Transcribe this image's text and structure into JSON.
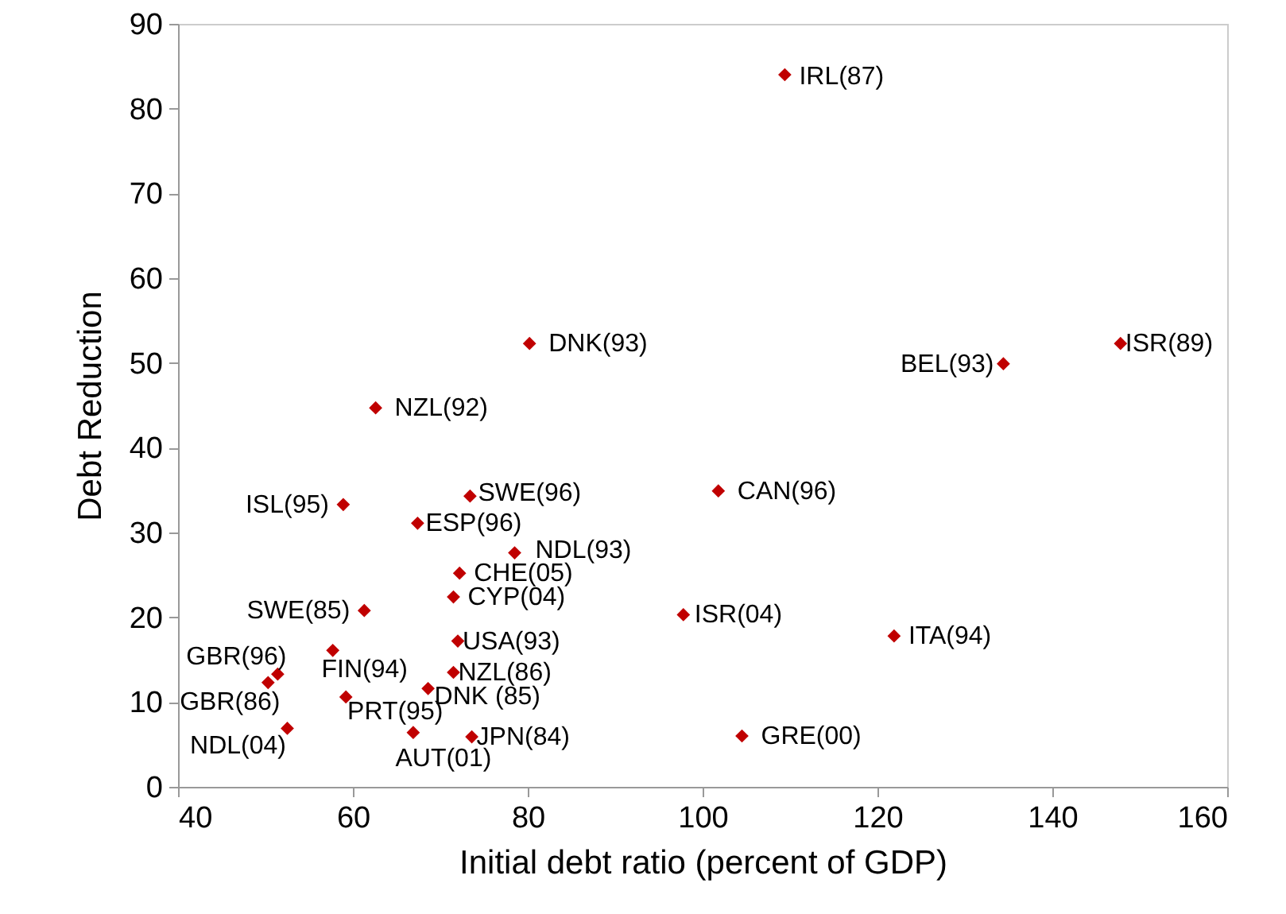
{
  "chart_data": {
    "type": "scatter",
    "xlabel": "Initial debt ratio (percent of GDP)",
    "ylabel": "Debt Reduction",
    "x": [
      109.4,
      80.2,
      62.6,
      134.4,
      147.8,
      58.9,
      73.4,
      101.8,
      67.4,
      78.5,
      72.2,
      71.5,
      61.3,
      97.8,
      72.0,
      57.7,
      51.4,
      50.3,
      71.5,
      68.6,
      59.2,
      52.5,
      66.9,
      73.6,
      104.5,
      121.9
    ],
    "series": [
      {
        "color": "#c00000",
        "values": [
          84.0,
          52.3,
          44.7,
          49.9,
          52.3,
          33.3,
          34.3,
          34.9,
          31.1,
          27.6,
          25.2,
          22.4,
          20.8,
          20.3,
          17.2,
          16.1,
          13.3,
          12.3,
          13.5,
          11.6,
          10.6,
          6.9,
          6.4,
          5.9,
          6.0,
          17.8
        ]
      }
    ],
    "marker": "diamond",
    "xlim": [
      40,
      160
    ],
    "xticks": [
      40,
      60,
      80,
      100,
      120,
      140,
      160
    ],
    "ylim": [
      0,
      90
    ],
    "yticks": [
      0,
      10,
      20,
      30,
      40,
      50,
      60,
      70,
      80,
      90
    ],
    "grid": false,
    "annotations": [
      {
        "text": "IRL(87)",
        "x": 109.4,
        "y": 84.0
      },
      {
        "text": "DNK(93)",
        "x": 80.2,
        "y": 52.3
      },
      {
        "text": "NZL(92)",
        "x": 62.6,
        "y": 44.7
      },
      {
        "text": "BEL(93)",
        "x": 134.4,
        "y": 49.9
      },
      {
        "text": "ISR(89)",
        "x": 147.8,
        "y": 52.3
      },
      {
        "text": "ISL(95)",
        "x": 58.9,
        "y": 33.3
      },
      {
        "text": "SWE(96)",
        "x": 73.4,
        "y": 34.3
      },
      {
        "text": "CAN(96)",
        "x": 101.8,
        "y": 34.9
      },
      {
        "text": "ESP(96)",
        "x": 67.4,
        "y": 31.1
      },
      {
        "text": "NDL(93)",
        "x": 78.5,
        "y": 27.6
      },
      {
        "text": "CHE(05)",
        "x": 72.2,
        "y": 25.2
      },
      {
        "text": "CYP(04)",
        "x": 71.5,
        "y": 22.4
      },
      {
        "text": "SWE(85)",
        "x": 61.3,
        "y": 20.8
      },
      {
        "text": "ISR(04)",
        "x": 97.8,
        "y": 20.3
      },
      {
        "text": "USA(93)",
        "x": 72.0,
        "y": 17.2
      },
      {
        "text": "FIN(94)",
        "x": 57.7,
        "y": 16.1
      },
      {
        "text": "GBR(96)",
        "x": 51.4,
        "y": 13.3
      },
      {
        "text": "GBR(86)",
        "x": 50.3,
        "y": 12.3
      },
      {
        "text": "NZL(86)",
        "x": 71.5,
        "y": 13.5
      },
      {
        "text": "DNK (85)",
        "x": 68.6,
        "y": 11.6
      },
      {
        "text": "PRT(95)",
        "x": 59.2,
        "y": 10.6
      },
      {
        "text": "NDL(04)",
        "x": 52.5,
        "y": 6.9
      },
      {
        "text": "AUT(01)",
        "x": 66.9,
        "y": 6.4
      },
      {
        "text": "JPN(84)",
        "x": 73.6,
        "y": 5.9
      },
      {
        "text": "GRE(00)",
        "x": 104.5,
        "y": 6.0
      },
      {
        "text": "ITA(94)",
        "x": 121.9,
        "y": 17.8
      }
    ]
  }
}
